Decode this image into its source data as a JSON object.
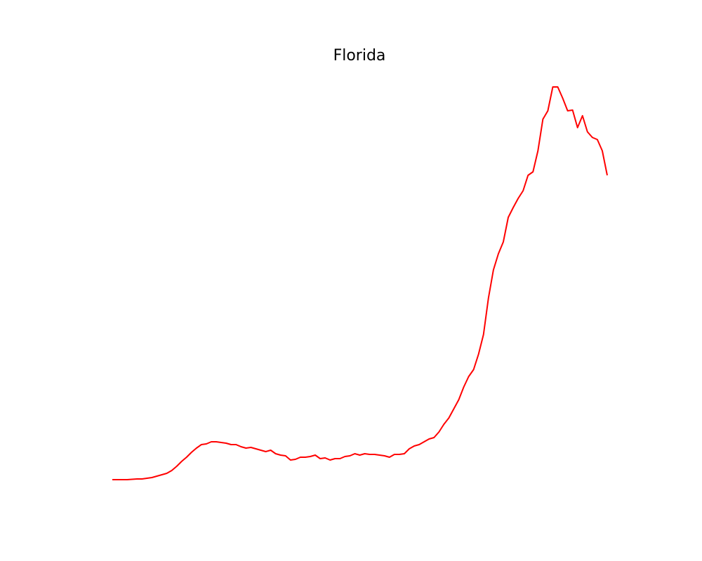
{
  "chart_data": {
    "type": "line",
    "title": "Florida",
    "color": "#ff0000",
    "ylim": [
      -20,
      588
    ],
    "values": [
      0,
      0,
      0,
      0,
      0.5,
      1,
      1,
      2,
      3,
      5,
      7,
      9,
      13,
      19,
      26,
      32,
      39,
      45,
      50,
      51,
      54,
      54,
      53,
      52,
      50,
      50,
      47,
      45,
      46,
      44,
      42,
      40,
      42,
      37,
      35,
      34,
      28,
      29,
      32,
      32,
      33,
      35,
      30,
      31,
      28,
      30,
      30,
      33,
      34,
      37,
      35,
      37,
      36,
      36,
      35,
      34,
      32,
      36,
      36,
      37,
      44,
      48,
      50,
      54,
      58,
      60,
      68,
      79,
      88,
      101,
      114,
      132,
      147,
      157,
      179,
      207,
      259,
      299,
      322,
      339,
      374,
      388,
      401,
      412,
      434,
      439,
      469,
      514,
      526,
      560,
      560,
      544,
      526,
      527,
      502,
      519,
      496,
      488,
      485,
      469,
      434
    ]
  }
}
